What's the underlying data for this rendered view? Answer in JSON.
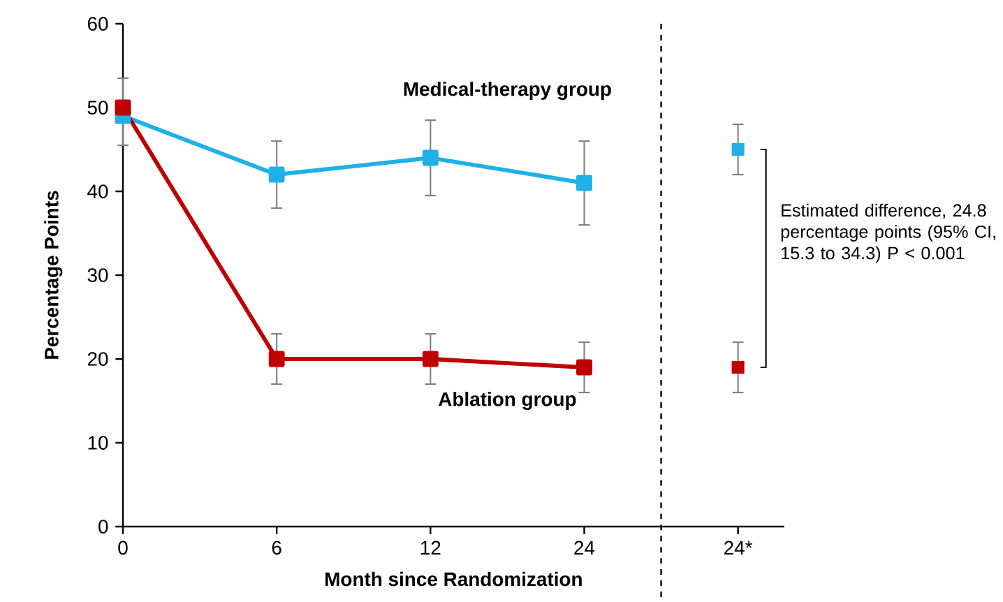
{
  "chart_data": {
    "type": "line",
    "xlabel": "Month since Randomization",
    "ylabel": "Percentage Points",
    "categories": [
      "0",
      "6",
      "12",
      "24",
      "24*"
    ],
    "series": [
      {
        "name": "Medical-therapy group",
        "color": "#1fb0e6",
        "values": [
          49,
          42,
          44,
          41,
          null
        ],
        "errors": [
          null,
          [
            38,
            46
          ],
          [
            39.5,
            48.5
          ],
          [
            36,
            46
          ],
          null
        ]
      },
      {
        "name": "Ablation group",
        "color": "#c00000",
        "values": [
          50,
          20,
          20,
          19,
          null
        ],
        "errors": [
          [
            45.5,
            53.5
          ],
          [
            17,
            23
          ],
          [
            17,
            23
          ],
          [
            16,
            22
          ],
          null
        ]
      },
      {
        "type": "scatter",
        "color": "#1fb0e6",
        "values": [
          null,
          null,
          null,
          null,
          45
        ],
        "errors": [
          null,
          null,
          null,
          null,
          [
            42,
            48
          ]
        ]
      },
      {
        "type": "scatter",
        "color": "#c00000",
        "values": [
          null,
          null,
          null,
          null,
          19
        ],
        "errors": [
          null,
          null,
          null,
          null,
          [
            16,
            22
          ]
        ]
      }
    ],
    "ylim": [
      0,
      60
    ],
    "yticks": [
      0,
      10,
      20,
      30,
      40,
      50,
      60
    ],
    "annotations": [
      "Estimated difference, 24.8 percentage points (95% CI, 15.3 to 34.3) P < 0.001"
    ],
    "marker": "square",
    "line_style": "solid",
    "grid": false
  }
}
